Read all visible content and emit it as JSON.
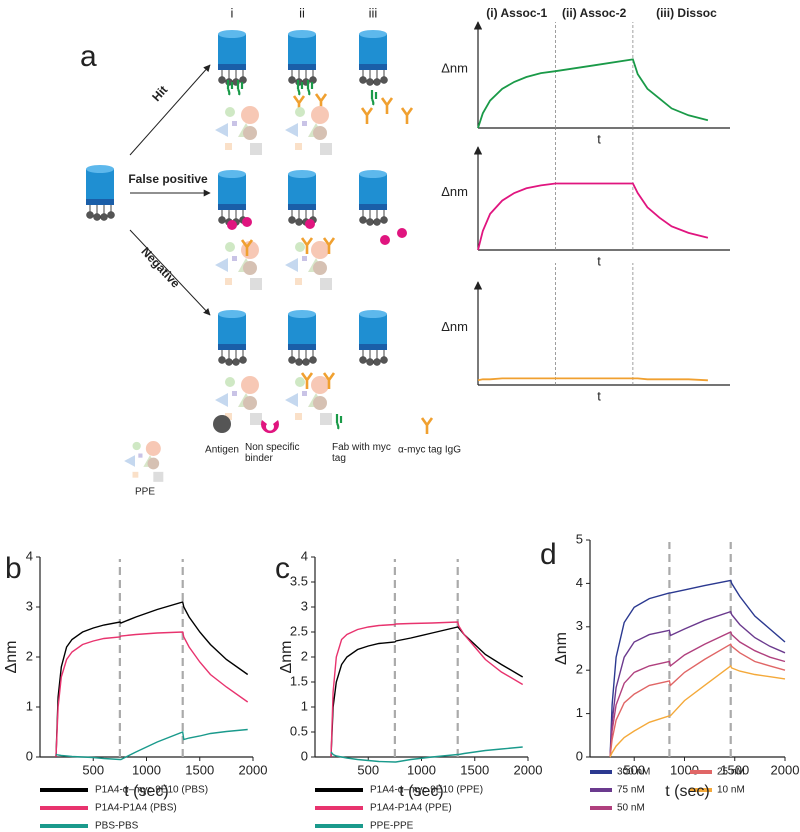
{
  "figure": {
    "panel": "a",
    "columns": [
      "i",
      "ii",
      "iii"
    ],
    "arrows": [
      "Hit",
      "False positive",
      "Negative"
    ],
    "legend": [
      "PPE",
      "Antigen",
      "Non specific binder",
      "Fab with myc tag",
      "α-myc tag IgG"
    ]
  },
  "chart_data": [
    {
      "type": "line",
      "ylabel": "Δnm",
      "xlabel": "t",
      "annotations": [
        "(i) Assoc-1",
        "(ii) Assoc-2",
        "(iii) Dissoc"
      ],
      "x": [
        0,
        0.02,
        0.05,
        0.1,
        0.15,
        0.2,
        0.26,
        0.32,
        0.48,
        0.64,
        0.66,
        0.7,
        0.75,
        0.8,
        0.87,
        0.95
      ],
      "xlim": [
        0,
        1
      ],
      "ylim": [
        0,
        1
      ],
      "vlines": [
        0.32,
        0.64
      ],
      "series": [
        {
          "color": "#1a9a48",
          "values": [
            0,
            0.15,
            0.28,
            0.4,
            0.47,
            0.52,
            0.56,
            0.58,
            0.64,
            0.7,
            0.55,
            0.4,
            0.3,
            0.2,
            0.13,
            0.08
          ]
        }
      ]
    },
    {
      "type": "line",
      "ylabel": "Δnm",
      "xlabel": "t",
      "x": [
        0,
        0.02,
        0.05,
        0.1,
        0.15,
        0.2,
        0.26,
        0.32,
        0.48,
        0.64,
        0.66,
        0.7,
        0.75,
        0.8,
        0.87,
        0.95
      ],
      "xlim": [
        0,
        1
      ],
      "ylim": [
        0,
        1
      ],
      "vlines": [
        0.32,
        0.64
      ],
      "series": [
        {
          "color": "#e0157f",
          "values": [
            0,
            0.2,
            0.38,
            0.52,
            0.6,
            0.65,
            0.68,
            0.7,
            0.7,
            0.7,
            0.6,
            0.45,
            0.34,
            0.25,
            0.18,
            0.13
          ]
        }
      ]
    },
    {
      "type": "line",
      "ylabel": "Δnm",
      "xlabel": "t",
      "x": [
        0,
        0.02,
        0.05,
        0.1,
        0.15,
        0.2,
        0.26,
        0.32,
        0.48,
        0.64,
        0.66,
        0.7,
        0.75,
        0.8,
        0.87,
        0.95
      ],
      "xlim": [
        0,
        1
      ],
      "ylim": [
        0,
        1
      ],
      "vlines": [
        0.32,
        0.64
      ],
      "series": [
        {
          "color": "#f0a030",
          "values": [
            0.05,
            0.06,
            0.06,
            0.07,
            0.07,
            0.07,
            0.07,
            0.07,
            0.07,
            0.07,
            0.07,
            0.06,
            0.06,
            0.06,
            0.06,
            0.05
          ]
        }
      ]
    },
    {
      "type": "line",
      "panel": "b",
      "ylabel": "Δnm",
      "xlabel": "t (sec)",
      "x": [
        150,
        170,
        200,
        250,
        300,
        400,
        500,
        600,
        750,
        760,
        900,
        1100,
        1340,
        1350,
        1400,
        1500,
        1600,
        1750,
        1950
      ],
      "xlim": [
        0,
        2000
      ],
      "xticks": [
        500,
        1000,
        1500,
        2000
      ],
      "ylim": [
        0,
        4
      ],
      "yticks": [
        0,
        1,
        2,
        3,
        4
      ],
      "vlines": [
        750,
        1340
      ],
      "series": [
        {
          "name": "P1A4-α–myc 9E10 (PBS)",
          "color": "#000000",
          "values": [
            0,
            1.2,
            1.8,
            2.2,
            2.35,
            2.5,
            2.58,
            2.64,
            2.7,
            2.68,
            2.8,
            2.95,
            3.1,
            3.0,
            2.8,
            2.5,
            2.25,
            1.95,
            1.65
          ]
        },
        {
          "name": "P1A4-P1A4 (PBS)",
          "color": "#e8336e",
          "values": [
            0,
            1.0,
            1.6,
            1.95,
            2.1,
            2.25,
            2.32,
            2.37,
            2.4,
            2.42,
            2.45,
            2.48,
            2.5,
            2.4,
            2.2,
            1.9,
            1.65,
            1.4,
            1.1
          ]
        },
        {
          "name": "PBS-PBS",
          "color": "#1a9a8c",
          "values": [
            0.05,
            0.04,
            0.03,
            0.02,
            0.01,
            0,
            -0.01,
            -0.03,
            -0.05,
            -0.05,
            0.1,
            0.3,
            0.5,
            0.35,
            0.38,
            0.42,
            0.47,
            0.51,
            0.55
          ]
        }
      ]
    },
    {
      "type": "line",
      "panel": "c",
      "ylabel": "Δnm",
      "xlabel": "t (sec)",
      "x": [
        150,
        170,
        200,
        250,
        300,
        400,
        500,
        600,
        750,
        760,
        900,
        1100,
        1340,
        1350,
        1400,
        1500,
        1600,
        1750,
        1950
      ],
      "xlim": [
        0,
        2000
      ],
      "xticks": [
        500,
        1000,
        1500,
        2000
      ],
      "ylim": [
        0,
        4
      ],
      "yticks": [
        0,
        0.5,
        1,
        1.5,
        2,
        2.5,
        3,
        3.5,
        4
      ],
      "vlines": [
        750,
        1340
      ],
      "series": [
        {
          "name": "P1A4-α–myc 9E10 (PPE)",
          "color": "#000000",
          "values": [
            0,
            1.0,
            1.5,
            1.85,
            2.0,
            2.15,
            2.22,
            2.27,
            2.3,
            2.32,
            2.38,
            2.48,
            2.6,
            2.58,
            2.45,
            2.25,
            2.05,
            1.85,
            1.6
          ]
        },
        {
          "name": "P1A4-P1A4 (PPE)",
          "color": "#e8336e",
          "values": [
            0,
            1.3,
            2.0,
            2.35,
            2.45,
            2.55,
            2.6,
            2.63,
            2.65,
            2.66,
            2.67,
            2.68,
            2.7,
            2.62,
            2.45,
            2.2,
            1.95,
            1.7,
            1.45
          ]
        },
        {
          "name": "PPE-PPE",
          "color": "#1a9a8c",
          "values": [
            0.1,
            0.05,
            0.02,
            0,
            -0.02,
            -0.05,
            -0.07,
            -0.09,
            -0.1,
            -0.1,
            -0.05,
            0,
            0.05,
            0.05,
            0.07,
            0.1,
            0.13,
            0.16,
            0.2
          ]
        }
      ]
    },
    {
      "type": "line",
      "panel": "d",
      "ylabel": "Δnm",
      "xlabel": "t (sec)",
      "x": [
        260,
        280,
        320,
        400,
        500,
        650,
        850,
        860,
        1000,
        1200,
        1460,
        1470,
        1550,
        1700,
        1850,
        2000
      ],
      "xlim": [
        60,
        2000
      ],
      "xticks": [
        500,
        1000,
        1500,
        2000
      ],
      "ylim": [
        0,
        5
      ],
      "yticks": [
        0,
        1,
        2,
        3,
        4,
        5
      ],
      "vlines": [
        850,
        1460
      ],
      "series": [
        {
          "name": "300 nM",
          "color": "#2b3990",
          "values": [
            0,
            1.2,
            2.3,
            3.1,
            3.45,
            3.65,
            3.78,
            3.78,
            3.85,
            3.95,
            4.07,
            4.0,
            3.7,
            3.25,
            2.95,
            2.65
          ]
        },
        {
          "name": "75 nM",
          "color": "#6b3a8e",
          "values": [
            0,
            0.8,
            1.6,
            2.3,
            2.65,
            2.82,
            2.92,
            2.8,
            2.95,
            3.15,
            3.35,
            3.28,
            3.05,
            2.75,
            2.55,
            2.4
          ]
        },
        {
          "name": "50 nM",
          "color": "#b0407e",
          "values": [
            0,
            0.6,
            1.2,
            1.7,
            1.95,
            2.1,
            2.2,
            2.1,
            2.35,
            2.6,
            2.88,
            2.82,
            2.65,
            2.45,
            2.3,
            2.2
          ]
        },
        {
          "name": "25 nM",
          "color": "#e06666",
          "values": [
            0,
            0.4,
            0.85,
            1.25,
            1.45,
            1.65,
            1.75,
            1.65,
            1.95,
            2.25,
            2.6,
            2.55,
            2.4,
            2.2,
            2.1,
            2.0
          ]
        },
        {
          "name": "10 nM",
          "color": "#f4a93a",
          "values": [
            0,
            0.1,
            0.25,
            0.45,
            0.6,
            0.8,
            0.95,
            0.95,
            1.3,
            1.65,
            2.1,
            2.05,
            1.98,
            1.9,
            1.85,
            1.8
          ]
        }
      ]
    }
  ]
}
